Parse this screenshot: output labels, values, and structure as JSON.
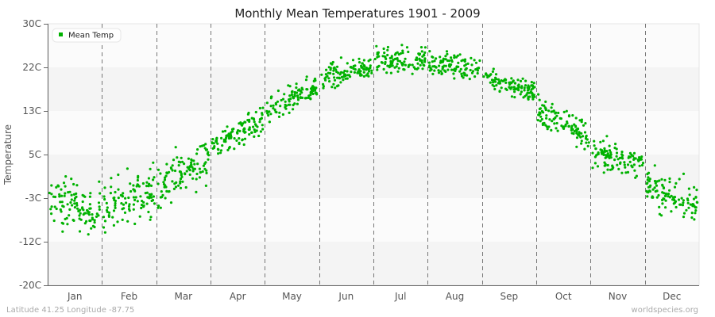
{
  "chart_data": {
    "type": "scatter",
    "title": "Monthly Mean Temperatures 1901 - 2009",
    "xlabel": "",
    "ylabel": "Temperature",
    "ylim": [
      -20,
      30
    ],
    "y_ticks": [
      "30C",
      "22C",
      "13C",
      "5C",
      "-3C",
      "-12C",
      "-20C"
    ],
    "y_tick_values": [
      30,
      22,
      13,
      5,
      -3,
      -12,
      -20
    ],
    "categories": [
      "Jan",
      "Feb",
      "Mar",
      "Apr",
      "May",
      "Jun",
      "Jul",
      "Aug",
      "Sep",
      "Oct",
      "Nov",
      "Dec"
    ],
    "grid": "alternating horizontal bands, dashed vertical month dividers",
    "legend_position": "top-left inside plot",
    "series": [
      {
        "name": "Mean Temp",
        "color": "#00b200",
        "points_per_month": 109,
        "monthly_summary": [
          {
            "month": "Jan",
            "mean": -4.5,
            "min": -13.5,
            "max": 3.0,
            "trend_start": -4.0,
            "trend_end": -5.5
          },
          {
            "month": "Feb",
            "mean": -3.0,
            "min": -12.0,
            "max": 5.0,
            "trend_start": -5.0,
            "trend_end": -1.5
          },
          {
            "month": "Mar",
            "mean": 2.0,
            "min": -5.0,
            "max": 9.5,
            "trend_start": -1.5,
            "trend_end": 5.0
          },
          {
            "month": "Apr",
            "mean": 9.0,
            "min": 5.0,
            "max": 14.0,
            "trend_start": 6.5,
            "trend_end": 11.5
          },
          {
            "month": "May",
            "mean": 15.5,
            "min": 11.0,
            "max": 20.5,
            "trend_start": 12.5,
            "trend_end": 18.0
          },
          {
            "month": "Jun",
            "mean": 21.0,
            "min": 17.0,
            "max": 25.5,
            "trend_start": 19.5,
            "trend_end": 22.5
          },
          {
            "month": "Jul",
            "mean": 23.5,
            "min": 19.5,
            "max": 27.5,
            "trend_start": 23.0,
            "trend_end": 23.5
          },
          {
            "month": "Aug",
            "mean": 22.5,
            "min": 18.5,
            "max": 26.0,
            "trend_start": 23.0,
            "trend_end": 21.5
          },
          {
            "month": "Sep",
            "mean": 18.5,
            "min": 14.5,
            "max": 22.5,
            "trend_start": 20.0,
            "trend_end": 17.0
          },
          {
            "month": "Oct",
            "mean": 11.0,
            "min": 6.0,
            "max": 16.5,
            "trend_start": 13.0,
            "trend_end": 8.5
          },
          {
            "month": "Nov",
            "mean": 4.5,
            "min": 0.0,
            "max": 8.5,
            "trend_start": 5.5,
            "trend_end": 3.0
          },
          {
            "month": "Dec",
            "mean": -3.0,
            "min": -9.5,
            "max": 3.0,
            "trend_start": -1.0,
            "trend_end": -4.5
          }
        ]
      }
    ]
  },
  "title": "Monthly Mean Temperatures 1901 - 2009",
  "y_axis_label": "Temperature",
  "legend": {
    "label": "Mean Temp",
    "color": "#00b200"
  },
  "footer": {
    "location": "Latitude 41.25 Longitude -87.75",
    "source": "worldspecies.org"
  },
  "colors": {
    "band_light": "#fbfbfb",
    "band_dark": "#f4f4f4",
    "axis": "#666666",
    "divider": "#777777",
    "point": "#00b200"
  }
}
